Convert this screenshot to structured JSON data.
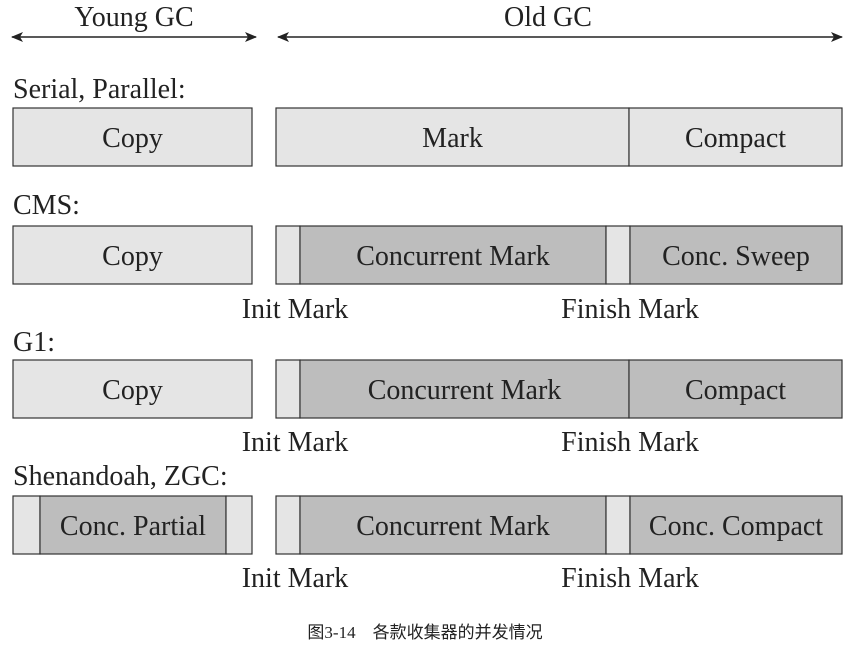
{
  "header": {
    "young": "Young GC",
    "old": "Old GC"
  },
  "rows": [
    {
      "label": "Serial, Parallel:",
      "young": [
        {
          "text": "Copy",
          "fill": "#e5e5e5"
        }
      ],
      "old": [
        {
          "text": "Mark",
          "fill": "#e5e5e5"
        },
        {
          "text": "Compact",
          "fill": "#e5e5e5"
        }
      ],
      "below": {
        "left": "",
        "right": ""
      }
    },
    {
      "label": "CMS:",
      "young": [
        {
          "text": "Copy",
          "fill": "#e5e5e5"
        }
      ],
      "old": [
        {
          "text": "",
          "fill": "#e5e5e5"
        },
        {
          "text": "Concurrent Mark",
          "fill": "#bdbdbd"
        },
        {
          "text": "",
          "fill": "#e5e5e5"
        },
        {
          "text": "Conc. Sweep",
          "fill": "#bdbdbd"
        }
      ],
      "below": {
        "left": "Init Mark",
        "right": "Finish Mark"
      }
    },
    {
      "label": "G1:",
      "young": [
        {
          "text": "Copy",
          "fill": "#e5e5e5"
        }
      ],
      "old": [
        {
          "text": "",
          "fill": "#e5e5e5"
        },
        {
          "text": "Concurrent Mark",
          "fill": "#bdbdbd"
        },
        {
          "text": "Compact",
          "fill": "#bdbdbd"
        }
      ],
      "below": {
        "left": "Init Mark",
        "right": "Finish Mark"
      }
    },
    {
      "label": "Shenandoah, ZGC:",
      "young": [
        {
          "text": "",
          "fill": "#e5e5e5"
        },
        {
          "text": "Conc. Partial",
          "fill": "#bdbdbd"
        },
        {
          "text": "",
          "fill": "#e5e5e5"
        }
      ],
      "old": [
        {
          "text": "",
          "fill": "#e5e5e5"
        },
        {
          "text": "Concurrent Mark",
          "fill": "#bdbdbd"
        },
        {
          "text": "",
          "fill": "#e5e5e5"
        },
        {
          "text": "Conc. Compact",
          "fill": "#bdbdbd"
        }
      ],
      "below": {
        "left": "Init Mark",
        "right": "Finish Mark"
      }
    }
  ],
  "caption": "图3-14　各款收集器的并发情况"
}
